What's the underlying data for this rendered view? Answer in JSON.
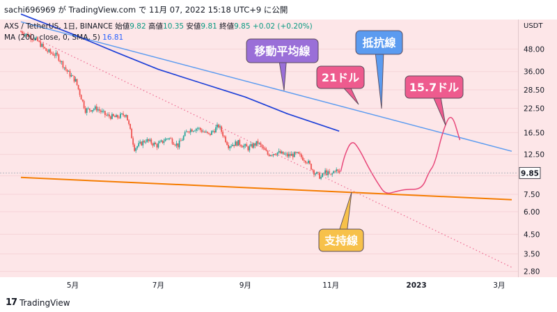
{
  "header": {
    "attribution": "sachi696969 が TradingView.com で 11月 07, 2022 15:18 UTC+9 に公開"
  },
  "legend": {
    "symbol_line": "AXS / TetherUS, 1日, BINANCE",
    "open_label": "始値",
    "open_value": "9.82",
    "high_label": "高値",
    "high_value": "10.35",
    "low_label": "安値",
    "low_value": "9.81",
    "close_label": "終値",
    "close_value": "9.85",
    "change": "+0.02 (+0.20%)",
    "ma_line": "MA (200, close, 0, SMA, 5)",
    "ma_value": "16.81"
  },
  "axis": {
    "currency": "USDT",
    "price_label": "9.85"
  },
  "footer": {
    "brand": "TradingView"
  },
  "annotations": {
    "moving_average": "移動平均線",
    "resistance": "抵抗線",
    "target_21": "21ドル",
    "target_157": "15.7ドル",
    "support": "支持線"
  },
  "colors": {
    "background": "#fde6e8",
    "up_candle": "#26a69a",
    "down_candle": "#ef5350",
    "ma_line": "#1e40d8",
    "resistance_line": "#5b9bf0",
    "support_line": "#f57c00",
    "projection": "#e8477a",
    "callout_ma": "#9a6fd8",
    "callout_resistance": "#5b9bf0",
    "callout_target": "#ee5b8e",
    "callout_support": "#f7c14a"
  },
  "chart_data": {
    "type": "candlestick",
    "symbol": "AXS / TetherUS",
    "interval": "1日",
    "exchange": "BINANCE",
    "y_scale": "log",
    "ylim": [
      2.6,
      70
    ],
    "y_ticks": [
      2.8,
      3.5,
      4.5,
      6.0,
      7.5,
      9.5,
      12.5,
      16.5,
      22.5,
      28.5,
      36.0,
      48.0
    ],
    "x_ticks": [
      "5月",
      "7月",
      "9月",
      "11月",
      "2023",
      "3月"
    ],
    "last_price": 9.85,
    "ohlc_last": {
      "open": 9.82,
      "high": 10.35,
      "low": 9.81,
      "close": 9.85
    },
    "price_path": [
      {
        "date": "2022-03-25",
        "close": 60.0
      },
      {
        "date": "2022-04-05",
        "close": 54.0
      },
      {
        "date": "2022-04-12",
        "close": 47.0
      },
      {
        "date": "2022-04-20",
        "close": 44.0
      },
      {
        "date": "2022-04-27",
        "close": 36.0
      },
      {
        "date": "2022-05-03",
        "close": 32.0
      },
      {
        "date": "2022-05-10",
        "close": 22.0
      },
      {
        "date": "2022-05-18",
        "close": 22.5
      },
      {
        "date": "2022-05-25",
        "close": 20.5
      },
      {
        "date": "2022-06-01",
        "close": 20.0
      },
      {
        "date": "2022-06-08",
        "close": 21.0
      },
      {
        "date": "2022-06-14",
        "close": 13.5
      },
      {
        "date": "2022-06-22",
        "close": 15.0
      },
      {
        "date": "2022-06-30",
        "close": 14.0
      },
      {
        "date": "2022-07-08",
        "close": 15.5
      },
      {
        "date": "2022-07-15",
        "close": 14.0
      },
      {
        "date": "2022-07-22",
        "close": 17.0
      },
      {
        "date": "2022-07-29",
        "close": 17.5
      },
      {
        "date": "2022-08-06",
        "close": 16.0
      },
      {
        "date": "2022-08-13",
        "close": 18.0
      },
      {
        "date": "2022-08-20",
        "close": 14.0
      },
      {
        "date": "2022-08-27",
        "close": 14.5
      },
      {
        "date": "2022-09-03",
        "close": 13.5
      },
      {
        "date": "2022-09-10",
        "close": 14.5
      },
      {
        "date": "2022-09-17",
        "close": 12.5
      },
      {
        "date": "2022-09-24",
        "close": 12.8
      },
      {
        "date": "2022-10-01",
        "close": 12.3
      },
      {
        "date": "2022-10-08",
        "close": 12.5
      },
      {
        "date": "2022-10-15",
        "close": 11.5
      },
      {
        "date": "2022-10-20",
        "close": 10.0
      },
      {
        "date": "2022-10-25",
        "close": 9.3
      },
      {
        "date": "2022-10-28",
        "close": 10.0
      },
      {
        "date": "2022-11-01",
        "close": 9.5
      },
      {
        "date": "2022-11-04",
        "close": 10.3
      },
      {
        "date": "2022-11-07",
        "close": 9.85
      }
    ],
    "moving_average_path": [
      {
        "date": "2022-03-25",
        "value": 75.0
      },
      {
        "date": "2022-05-01",
        "value": 58.0
      },
      {
        "date": "2022-06-01",
        "value": 46.0
      },
      {
        "date": "2022-07-01",
        "value": 37.0
      },
      {
        "date": "2022-08-01",
        "value": 31.0
      },
      {
        "date": "2022-09-01",
        "value": 26.0
      },
      {
        "date": "2022-10-01",
        "value": 21.0
      },
      {
        "date": "2022-11-07",
        "value": 16.81
      }
    ],
    "resistance_line": [
      {
        "date": "2022-03-25",
        "value": 68.0
      },
      {
        "date": "2023-03-10",
        "value": 13.0
      }
    ],
    "support_line": [
      {
        "date": "2022-03-25",
        "value": 9.3
      },
      {
        "date": "2023-03-10",
        "value": 7.0
      }
    ],
    "dotted_trendline": [
      {
        "date": "2022-03-25",
        "value": 60.0
      },
      {
        "date": "2023-03-10",
        "value": 2.95
      }
    ],
    "projection_path": [
      {
        "date": "2022-11-08",
        "value": 10.0
      },
      {
        "date": "2022-11-11",
        "value": 12.5
      },
      {
        "date": "2022-11-16",
        "value": 15.0
      },
      {
        "date": "2022-11-21",
        "value": 13.5
      },
      {
        "date": "2022-11-28",
        "value": 10.5
      },
      {
        "date": "2022-12-05",
        "value": 8.5
      },
      {
        "date": "2022-12-10",
        "value": 7.5
      },
      {
        "date": "2022-12-18",
        "value": 7.8
      },
      {
        "date": "2022-12-25",
        "value": 8.0
      },
      {
        "date": "2023-01-05",
        "value": 8.0
      },
      {
        "date": "2023-01-10",
        "value": 10.0
      },
      {
        "date": "2023-01-14",
        "value": 11.0
      },
      {
        "date": "2023-01-20",
        "value": 17.0
      },
      {
        "date": "2023-01-26",
        "value": 21.5
      },
      {
        "date": "2023-02-01",
        "value": 15.0
      }
    ]
  }
}
